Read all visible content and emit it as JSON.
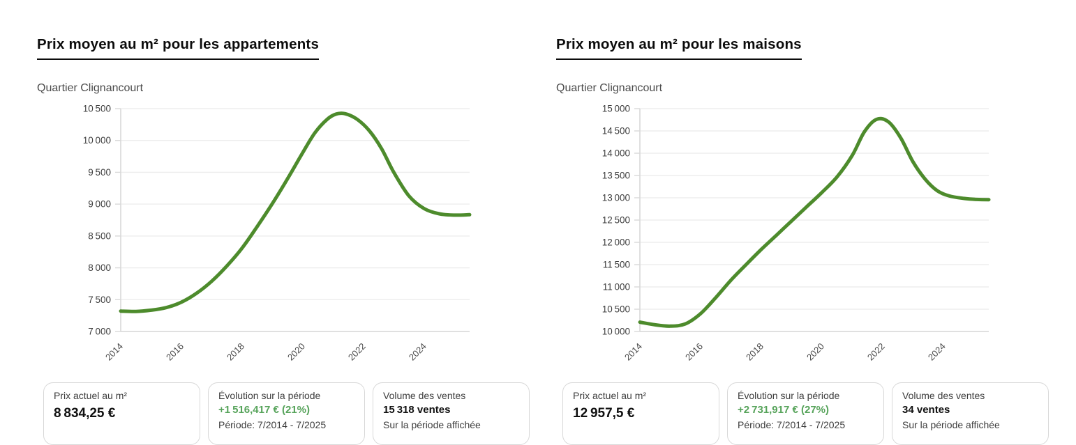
{
  "theme": {
    "line_color": "#4d8b2c",
    "positive_color": "#56a35a",
    "grid_color": "#ededed",
    "axis_color": "#d9d9d9",
    "tick_label_color": "#3e3e3e"
  },
  "chart_data": [
    {
      "type": "line",
      "title": "Prix moyen au m² pour les appartements",
      "subtitle": "Quartier Clignancourt",
      "x": [
        2014,
        2014.5,
        2015,
        2015.5,
        2016,
        2016.5,
        2017,
        2017.5,
        2018,
        2018.5,
        2019,
        2019.5,
        2020,
        2020.4,
        2020.8,
        2021.1,
        2021.4,
        2021.8,
        2022.2,
        2022.6,
        2023,
        2023.5,
        2024,
        2024.5,
        2025,
        2025.5
      ],
      "values": [
        7320,
        7315,
        7335,
        7375,
        7460,
        7600,
        7790,
        8030,
        8310,
        8650,
        9010,
        9400,
        9810,
        10120,
        10330,
        10415,
        10420,
        10330,
        10150,
        9870,
        9500,
        9130,
        8930,
        8848,
        8828,
        8834.25
      ],
      "xlim": [
        2014,
        2025.5
      ],
      "ylim": [
        7000,
        10500
      ],
      "ytick_step": 500,
      "xticks": [
        2014,
        2016,
        2018,
        2020,
        2022,
        2024
      ],
      "grid": true,
      "legend": "none",
      "cards": [
        {
          "label": "Prix actuel au m²",
          "value": "8 834,25 €"
        },
        {
          "label": "Évolution sur la période",
          "highlight": "+1 516,417 € (21%)",
          "sub": "Période: 7/2014 - 7/2025"
        },
        {
          "label": "Volume des ventes",
          "bold": "15 318 ventes",
          "sub": "Sur la période affichée"
        }
      ]
    },
    {
      "type": "line",
      "title": "Prix moyen au m² pour les maisons",
      "subtitle": "Quartier Clignancourt",
      "x": [
        2014,
        2014.5,
        2015,
        2015.5,
        2016,
        2016.5,
        2017,
        2017.5,
        2018,
        2018.5,
        2019,
        2019.5,
        2020,
        2020.5,
        2021,
        2021.4,
        2021.8,
        2022.2,
        2022.6,
        2023,
        2023.4,
        2023.8,
        2024.2,
        2024.7,
        2025.1,
        2025.5
      ],
      "values": [
        10210,
        10150,
        10120,
        10170,
        10400,
        10760,
        11150,
        11500,
        11840,
        12160,
        12480,
        12800,
        13120,
        13470,
        13950,
        14480,
        14760,
        14700,
        14340,
        13810,
        13420,
        13160,
        13040,
        12985,
        12962,
        12957.5
      ],
      "xlim": [
        2014,
        2025.5
      ],
      "ylim": [
        10000,
        15000
      ],
      "ytick_step": 500,
      "xticks": [
        2014,
        2016,
        2018,
        2020,
        2022,
        2024
      ],
      "grid": true,
      "legend": "none",
      "cards": [
        {
          "label": "Prix actuel au m²",
          "value": "12 957,5 €"
        },
        {
          "label": "Évolution sur la période",
          "highlight": "+2 731,917 € (27%)",
          "sub": "Période: 7/2014 - 7/2025"
        },
        {
          "label": "Volume des ventes",
          "bold": "34 ventes",
          "sub": "Sur la période affichée"
        }
      ]
    }
  ]
}
